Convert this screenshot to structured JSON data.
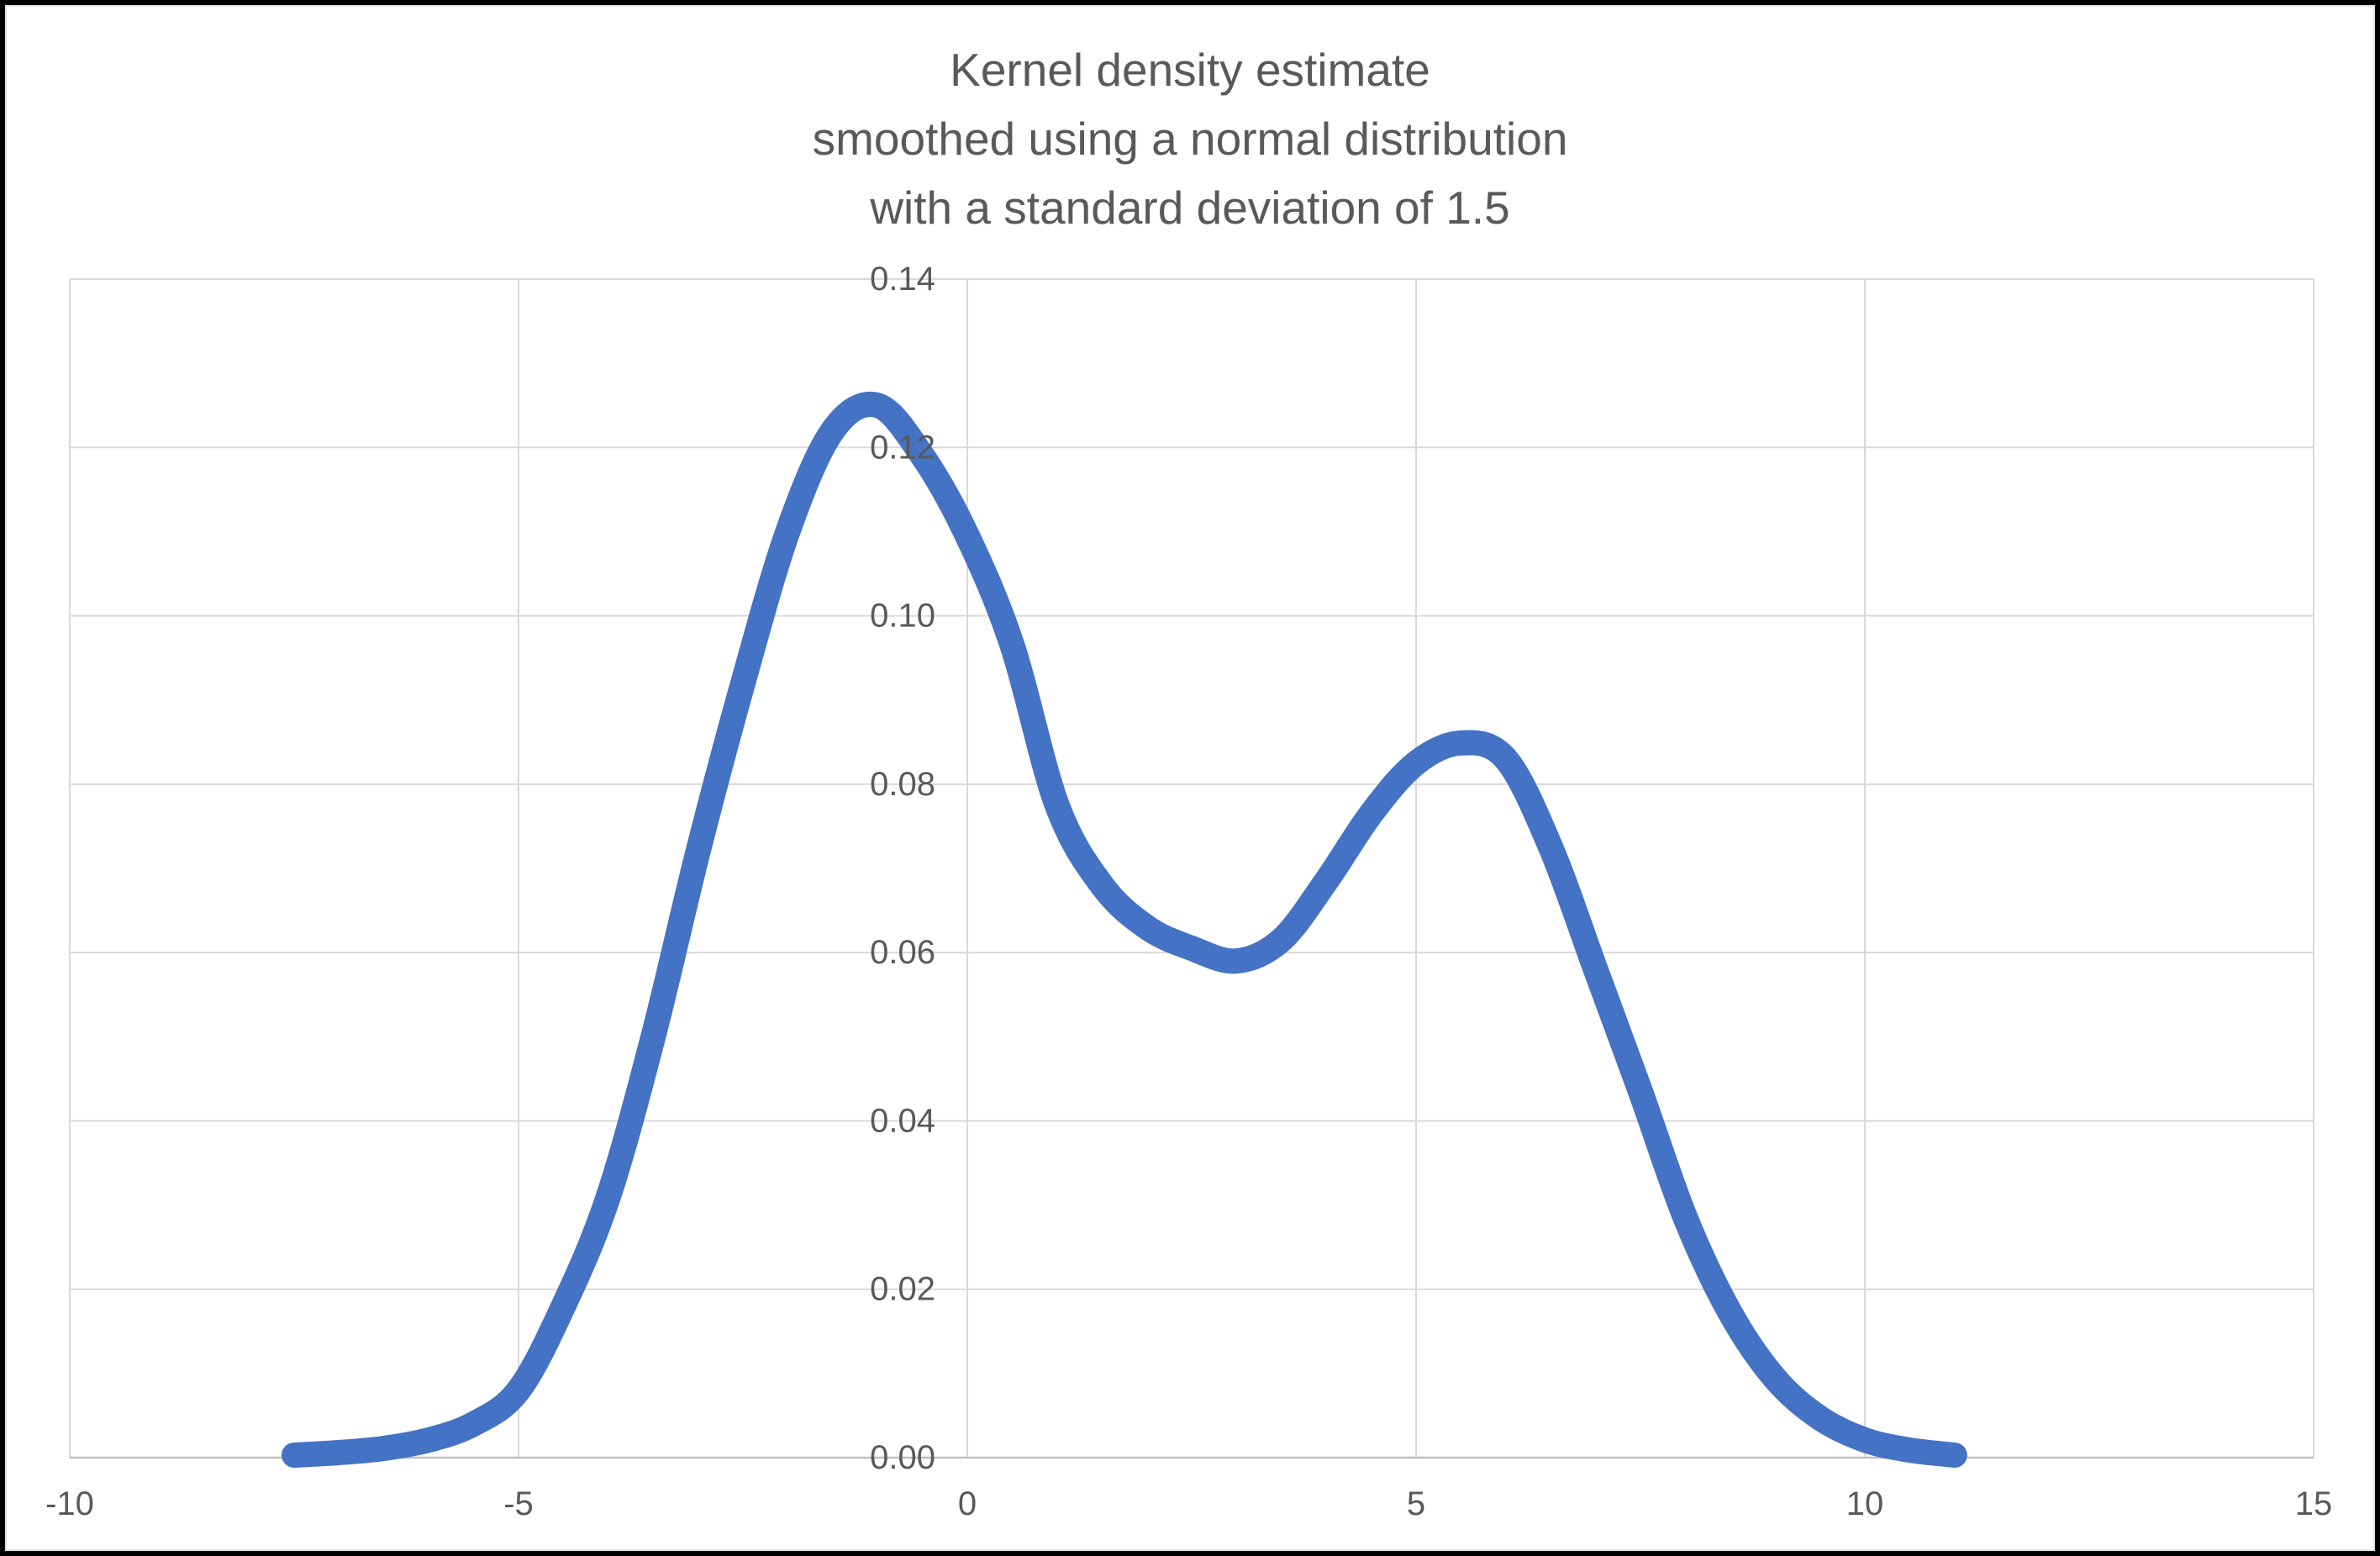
{
  "chart_data": {
    "type": "line",
    "title_lines": [
      "Kernel density estimate",
      "smoothed using a normal distribution",
      "with a standard deviation of 1.5"
    ],
    "series": [
      {
        "name": "kernel density estimate curve",
        "color": "#4472C4",
        "line_width": 30,
        "points": [
          [
            -7.5,
            0.0003
          ],
          [
            -7.0,
            0.0006
          ],
          [
            -6.5,
            0.0011
          ],
          [
            -6.0,
            0.0021
          ],
          [
            -5.5,
            0.004
          ],
          [
            -5.0,
            0.008
          ],
          [
            -4.5,
            0.018
          ],
          [
            -4.0,
            0.031
          ],
          [
            -3.5,
            0.05
          ],
          [
            -3.0,
            0.072
          ],
          [
            -2.5,
            0.092
          ],
          [
            -2.0,
            0.11
          ],
          [
            -1.5,
            0.122
          ],
          [
            -1.0,
            0.125
          ],
          [
            -0.5,
            0.119
          ],
          [
            0.0,
            0.1095
          ],
          [
            0.5,
            0.0965
          ],
          [
            1.0,
            0.0775
          ],
          [
            1.5,
            0.068
          ],
          [
            2.0,
            0.063
          ],
          [
            2.5,
            0.0605
          ],
          [
            3.0,
            0.059
          ],
          [
            3.5,
            0.0615
          ],
          [
            4.0,
            0.0685
          ],
          [
            4.5,
            0.0765
          ],
          [
            5.0,
            0.0825
          ],
          [
            5.5,
            0.0849
          ],
          [
            6.0,
            0.083
          ],
          [
            6.5,
            0.0725
          ],
          [
            7.0,
            0.058
          ],
          [
            7.5,
            0.0435
          ],
          [
            8.0,
            0.0285
          ],
          [
            8.5,
            0.0172
          ],
          [
            9.0,
            0.0094
          ],
          [
            9.5,
            0.0047
          ],
          [
            10.0,
            0.0021
          ],
          [
            10.5,
            0.0009
          ],
          [
            11.0,
            0.0003
          ]
        ]
      }
    ],
    "x_ticks": [
      "-10",
      "-5",
      "0",
      "5",
      "10",
      "15"
    ],
    "y_ticks": [
      "0.00",
      "0.02",
      "0.04",
      "0.06",
      "0.08",
      "0.10",
      "0.12",
      "0.14"
    ],
    "xlim": [
      -10,
      15
    ],
    "ylim": [
      0,
      0.14
    ],
    "grid": true,
    "legend": "none",
    "xlabel": "",
    "ylabel": "",
    "colors": {
      "line": "#4472C4",
      "gridline": "#D9D9D9",
      "axis_line": "#BFBFBF",
      "tick_text": "#595959",
      "title_text": "#595959",
      "background": "#FFFFFF",
      "frame": "#000000"
    }
  }
}
